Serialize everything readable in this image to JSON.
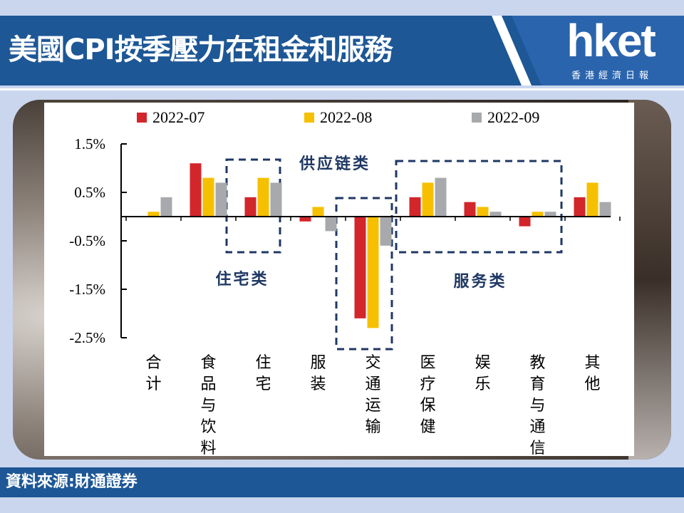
{
  "header": {
    "title": "美國CPI按季壓力在租金和服務",
    "logo": "hket",
    "logo_subtitle": "香港經濟日報"
  },
  "footer": {
    "source": "資料來源:財通證券"
  },
  "colors": {
    "header_bg": "#1d5796",
    "series": [
      "#d2262b",
      "#f6c000",
      "#a7a9ac"
    ],
    "box": "#1f3864"
  },
  "chart_data": {
    "type": "bar",
    "categories": [
      "合计",
      "食品与饮料",
      "住宅",
      "服装",
      "交通运输",
      "医疗保健",
      "娱乐",
      "教育与通信",
      "其他"
    ],
    "series": [
      {
        "name": "2022-07",
        "values": [
          0.0,
          1.1,
          0.4,
          -0.1,
          -2.1,
          0.4,
          0.3,
          -0.2,
          0.4
        ]
      },
      {
        "name": "2022-08",
        "values": [
          0.1,
          0.8,
          0.8,
          0.2,
          -2.3,
          0.7,
          0.2,
          0.1,
          0.7
        ]
      },
      {
        "name": "2022-09",
        "values": [
          0.4,
          0.7,
          0.7,
          -0.3,
          -0.6,
          0.8,
          0.1,
          0.1,
          0.3
        ]
      }
    ],
    "y_ticks": [
      "1.5%",
      "0.5%",
      "-0.5%",
      "-1.5%",
      "-2.5%"
    ],
    "ylim": [
      -2.5,
      1.5
    ],
    "legend_position": "top",
    "annotations": {
      "supply_chain": "供应链类",
      "housing": "住宅类",
      "services": "服务类"
    }
  }
}
